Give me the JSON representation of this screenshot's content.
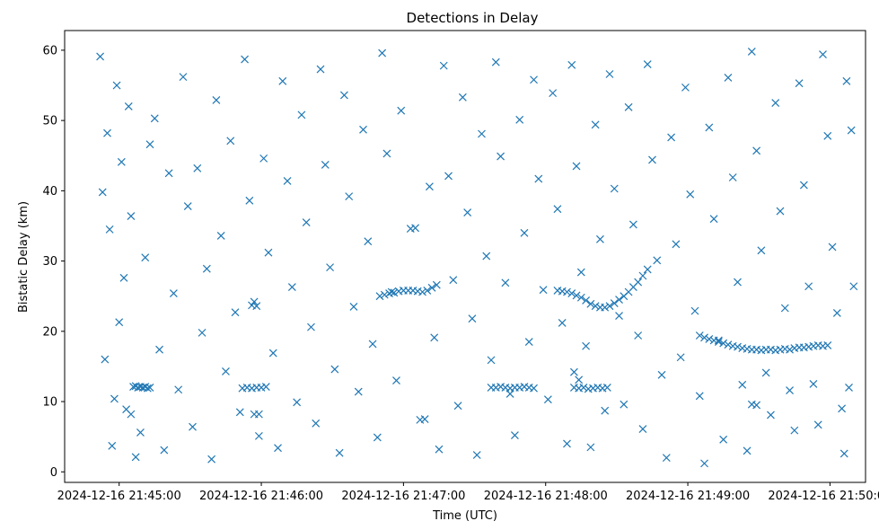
{
  "chart_data": {
    "type": "scatter",
    "title": "Detections in Delay",
    "xlabel": "Time (UTC)",
    "ylabel": "Bistatic Delay (km)",
    "x_ticks": [
      "2024-12-16 21:45:00",
      "2024-12-16 21:46:00",
      "2024-12-16 21:47:00",
      "2024-12-16 21:48:00",
      "2024-12-16 21:49:00",
      "2024-12-16 21:50:00"
    ],
    "y_ticks": [
      0,
      10,
      20,
      30,
      40,
      50,
      60
    ],
    "xlim": [
      "2024-12-16 21:44:37",
      "2024-12-16 21:50:15"
    ],
    "ylim": [
      -1.5,
      62.8
    ],
    "grid": false,
    "marker": "x",
    "color": "#1f77b4",
    "series": [
      {
        "points": [
          [
            "21:44:52",
            59.1
          ],
          [
            "21:44:53",
            39.8
          ],
          [
            "21:44:54",
            16.0
          ],
          [
            "21:44:55",
            48.2
          ],
          [
            "21:44:56",
            34.5
          ],
          [
            "21:44:57",
            3.7
          ],
          [
            "21:44:58",
            10.4
          ],
          [
            "21:44:59",
            55.0
          ],
          [
            "21:45:00",
            21.3
          ],
          [
            "21:45:01",
            44.1
          ],
          [
            "21:45:02",
            27.6
          ],
          [
            "21:45:03",
            8.9
          ],
          [
            "21:45:04",
            52.0
          ],
          [
            "21:45:05",
            36.4
          ],
          [
            "21:45:06",
            12.1
          ],
          [
            "21:45:07",
            12.2
          ],
          [
            "21:45:08",
            12.0
          ],
          [
            "21:45:09",
            12.1
          ],
          [
            "21:45:10",
            12.0
          ],
          [
            "21:45:11",
            12.1
          ],
          [
            "21:45:12",
            11.9
          ],
          [
            "21:45:13",
            12.0
          ],
          [
            "21:45:05",
            8.2
          ],
          [
            "21:45:07",
            2.1
          ],
          [
            "21:45:09",
            5.6
          ],
          [
            "21:45:11",
            30.5
          ],
          [
            "21:45:13",
            46.6
          ],
          [
            "21:45:15",
            50.3
          ],
          [
            "21:45:17",
            17.4
          ],
          [
            "21:45:19",
            3.1
          ],
          [
            "21:45:21",
            42.5
          ],
          [
            "21:45:23",
            25.4
          ],
          [
            "21:45:25",
            11.7
          ],
          [
            "21:45:27",
            56.2
          ],
          [
            "21:45:29",
            37.8
          ],
          [
            "21:45:31",
            6.4
          ],
          [
            "21:45:33",
            43.2
          ],
          [
            "21:45:35",
            19.8
          ],
          [
            "21:45:37",
            28.9
          ],
          [
            "21:45:39",
            1.8
          ],
          [
            "21:45:41",
            52.9
          ],
          [
            "21:45:43",
            33.6
          ],
          [
            "21:45:45",
            14.3
          ],
          [
            "21:45:47",
            47.1
          ],
          [
            "21:45:49",
            22.7
          ],
          [
            "21:45:51",
            8.5
          ],
          [
            "21:45:53",
            58.7
          ],
          [
            "21:45:55",
            38.6
          ],
          [
            "21:45:57",
            24.2
          ],
          [
            "21:45:59",
            5.1
          ],
          [
            "21:45:52",
            11.9
          ],
          [
            "21:45:54",
            12.0
          ],
          [
            "21:45:56",
            11.9
          ],
          [
            "21:45:58",
            12.0
          ],
          [
            "21:46:00",
            12.0
          ],
          [
            "21:46:02",
            12.1
          ],
          [
            "21:45:56",
            23.7
          ],
          [
            "21:45:58",
            23.6
          ],
          [
            "21:45:57",
            8.2
          ],
          [
            "21:45:59",
            8.2
          ],
          [
            "21:46:01",
            44.6
          ],
          [
            "21:46:03",
            31.2
          ],
          [
            "21:46:05",
            16.9
          ],
          [
            "21:46:07",
            3.4
          ],
          [
            "21:46:09",
            55.6
          ],
          [
            "21:46:11",
            41.4
          ],
          [
            "21:46:13",
            26.3
          ],
          [
            "21:46:15",
            9.9
          ],
          [
            "21:46:17",
            50.8
          ],
          [
            "21:46:19",
            35.5
          ],
          [
            "21:46:21",
            20.6
          ],
          [
            "21:46:23",
            6.9
          ],
          [
            "21:46:25",
            57.3
          ],
          [
            "21:46:27",
            43.7
          ],
          [
            "21:46:29",
            29.1
          ],
          [
            "21:46:31",
            14.6
          ],
          [
            "21:46:33",
            2.7
          ],
          [
            "21:46:35",
            53.6
          ],
          [
            "21:46:37",
            39.2
          ],
          [
            "21:46:39",
            23.5
          ],
          [
            "21:46:41",
            11.4
          ],
          [
            "21:46:43",
            48.7
          ],
          [
            "21:46:45",
            32.8
          ],
          [
            "21:46:47",
            18.2
          ],
          [
            "21:46:49",
            4.9
          ],
          [
            "21:46:51",
            59.6
          ],
          [
            "21:46:53",
            45.3
          ],
          [
            "21:46:55",
            25.6
          ],
          [
            "21:46:57",
            13.0
          ],
          [
            "21:46:59",
            51.4
          ],
          [
            "21:46:50",
            25.0
          ],
          [
            "21:46:52",
            25.2
          ],
          [
            "21:46:54",
            25.4
          ],
          [
            "21:46:56",
            25.5
          ],
          [
            "21:46:58",
            25.7
          ],
          [
            "21:47:00",
            25.8
          ],
          [
            "21:47:02",
            25.8
          ],
          [
            "21:47:04",
            25.8
          ],
          [
            "21:47:06",
            25.7
          ],
          [
            "21:47:08",
            25.6
          ],
          [
            "21:47:10",
            25.8
          ],
          [
            "21:47:12",
            26.2
          ],
          [
            "21:47:14",
            26.6
          ],
          [
            "21:47:03",
            34.6
          ],
          [
            "21:47:05",
            34.7
          ],
          [
            "21:47:07",
            7.4
          ],
          [
            "21:47:09",
            7.5
          ],
          [
            "21:47:11",
            40.6
          ],
          [
            "21:47:13",
            19.1
          ],
          [
            "21:47:15",
            3.2
          ],
          [
            "21:47:17",
            57.8
          ],
          [
            "21:47:19",
            42.1
          ],
          [
            "21:47:21",
            27.3
          ],
          [
            "21:47:23",
            9.4
          ],
          [
            "21:47:25",
            53.3
          ],
          [
            "21:47:27",
            36.9
          ],
          [
            "21:47:29",
            21.8
          ],
          [
            "21:47:31",
            2.4
          ],
          [
            "21:47:33",
            48.1
          ],
          [
            "21:47:35",
            30.7
          ],
          [
            "21:47:37",
            15.9
          ],
          [
            "21:47:39",
            58.3
          ],
          [
            "21:47:41",
            44.9
          ],
          [
            "21:47:43",
            26.9
          ],
          [
            "21:47:45",
            11.1
          ],
          [
            "21:47:47",
            5.2
          ],
          [
            "21:47:49",
            50.1
          ],
          [
            "21:47:51",
            34.0
          ],
          [
            "21:47:53",
            18.5
          ],
          [
            "21:47:55",
            55.8
          ],
          [
            "21:47:37",
            12.0
          ],
          [
            "21:47:39",
            12.0
          ],
          [
            "21:47:41",
            12.1
          ],
          [
            "21:47:43",
            12.0
          ],
          [
            "21:47:45",
            11.9
          ],
          [
            "21:47:47",
            12.0
          ],
          [
            "21:47:49",
            12.0
          ],
          [
            "21:47:51",
            12.1
          ],
          [
            "21:47:53",
            12.0
          ],
          [
            "21:47:55",
            11.9
          ],
          [
            "21:47:57",
            41.7
          ],
          [
            "21:47:59",
            25.9
          ],
          [
            "21:48:01",
            10.3
          ],
          [
            "21:48:03",
            53.9
          ],
          [
            "21:48:05",
            37.4
          ],
          [
            "21:48:07",
            21.2
          ],
          [
            "21:48:09",
            4.0
          ],
          [
            "21:48:11",
            57.9
          ],
          [
            "21:48:13",
            43.5
          ],
          [
            "21:48:15",
            28.4
          ],
          [
            "21:48:05",
            25.8
          ],
          [
            "21:48:07",
            25.7
          ],
          [
            "21:48:09",
            25.6
          ],
          [
            "21:48:11",
            25.4
          ],
          [
            "21:48:13",
            25.1
          ],
          [
            "21:48:15",
            24.8
          ],
          [
            "21:48:17",
            24.4
          ],
          [
            "21:48:19",
            23.9
          ],
          [
            "21:48:21",
            23.6
          ],
          [
            "21:48:23",
            23.4
          ],
          [
            "21:48:25",
            23.4
          ],
          [
            "21:48:27",
            23.6
          ],
          [
            "21:48:29",
            24.0
          ],
          [
            "21:48:31",
            24.5
          ],
          [
            "21:48:33",
            25.0
          ],
          [
            "21:48:35",
            25.6
          ],
          [
            "21:48:37",
            26.3
          ],
          [
            "21:48:39",
            27.0
          ],
          [
            "21:48:41",
            27.9
          ],
          [
            "21:48:43",
            28.8
          ],
          [
            "21:48:12",
            12.0
          ],
          [
            "21:48:14",
            11.9
          ],
          [
            "21:48:16",
            12.0
          ],
          [
            "21:48:18",
            11.8
          ],
          [
            "21:48:20",
            11.9
          ],
          [
            "21:48:22",
            12.0
          ],
          [
            "21:48:24",
            11.9
          ],
          [
            "21:48:26",
            12.0
          ],
          [
            "21:48:12",
            14.2
          ],
          [
            "21:48:14",
            13.1
          ],
          [
            "21:48:17",
            17.9
          ],
          [
            "21:48:19",
            3.5
          ],
          [
            "21:48:21",
            49.4
          ],
          [
            "21:48:23",
            33.1
          ],
          [
            "21:48:25",
            8.7
          ],
          [
            "21:48:27",
            56.6
          ],
          [
            "21:48:29",
            40.3
          ],
          [
            "21:48:31",
            22.2
          ],
          [
            "21:48:33",
            9.6
          ],
          [
            "21:48:35",
            51.9
          ],
          [
            "21:48:37",
            35.2
          ],
          [
            "21:48:39",
            19.4
          ],
          [
            "21:48:41",
            6.1
          ],
          [
            "21:48:43",
            58.0
          ],
          [
            "21:48:45",
            44.4
          ],
          [
            "21:48:47",
            30.1
          ],
          [
            "21:48:49",
            13.8
          ],
          [
            "21:48:51",
            2.0
          ],
          [
            "21:48:53",
            47.6
          ],
          [
            "21:48:55",
            32.4
          ],
          [
            "21:48:57",
            16.3
          ],
          [
            "21:48:59",
            54.7
          ],
          [
            "21:49:01",
            39.5
          ],
          [
            "21:49:03",
            22.9
          ],
          [
            "21:49:05",
            10.8
          ],
          [
            "21:49:07",
            1.2
          ],
          [
            "21:49:09",
            49.0
          ],
          [
            "21:49:11",
            36.0
          ],
          [
            "21:49:13",
            18.7
          ],
          [
            "21:49:15",
            4.6
          ],
          [
            "21:49:05",
            19.4
          ],
          [
            "21:49:07",
            19.1
          ],
          [
            "21:49:09",
            18.9
          ],
          [
            "21:49:11",
            18.7
          ],
          [
            "21:49:13",
            18.5
          ],
          [
            "21:49:15",
            18.3
          ],
          [
            "21:49:17",
            18.1
          ],
          [
            "21:49:19",
            17.9
          ],
          [
            "21:49:21",
            17.8
          ],
          [
            "21:49:23",
            17.6
          ],
          [
            "21:49:25",
            17.5
          ],
          [
            "21:49:27",
            17.4
          ],
          [
            "21:49:29",
            17.4
          ],
          [
            "21:49:31",
            17.3
          ],
          [
            "21:49:33",
            17.4
          ],
          [
            "21:49:35",
            17.4
          ],
          [
            "21:49:37",
            17.3
          ],
          [
            "21:49:39",
            17.4
          ],
          [
            "21:49:41",
            17.5
          ],
          [
            "21:49:43",
            17.4
          ],
          [
            "21:49:45",
            17.6
          ],
          [
            "21:49:47",
            17.7
          ],
          [
            "21:49:49",
            17.7
          ],
          [
            "21:49:51",
            17.8
          ],
          [
            "21:49:53",
            17.9
          ],
          [
            "21:49:55",
            18.0
          ],
          [
            "21:49:57",
            17.9
          ],
          [
            "21:49:59",
            18.0
          ],
          [
            "21:49:27",
            9.6
          ],
          [
            "21:49:29",
            9.5
          ],
          [
            "21:49:17",
            56.1
          ],
          [
            "21:49:19",
            41.9
          ],
          [
            "21:49:21",
            27.0
          ],
          [
            "21:49:23",
            12.4
          ],
          [
            "21:49:25",
            3.0
          ],
          [
            "21:49:27",
            59.8
          ],
          [
            "21:49:29",
            45.7
          ],
          [
            "21:49:31",
            31.5
          ],
          [
            "21:49:33",
            14.1
          ],
          [
            "21:49:35",
            8.1
          ],
          [
            "21:49:37",
            52.5
          ],
          [
            "21:49:39",
            37.1
          ],
          [
            "21:49:41",
            23.3
          ],
          [
            "21:49:43",
            11.6
          ],
          [
            "21:49:45",
            5.9
          ],
          [
            "21:49:47",
            55.3
          ],
          [
            "21:49:49",
            40.8
          ],
          [
            "21:49:51",
            26.4
          ],
          [
            "21:49:53",
            12.5
          ],
          [
            "21:49:55",
            6.7
          ],
          [
            "21:49:57",
            59.4
          ],
          [
            "21:49:59",
            47.8
          ],
          [
            "21:50:01",
            32.0
          ],
          [
            "21:50:03",
            22.6
          ],
          [
            "21:50:05",
            9.0
          ],
          [
            "21:50:06",
            2.6
          ],
          [
            "21:50:07",
            55.6
          ],
          [
            "21:50:08",
            12.0
          ],
          [
            "21:50:09",
            48.6
          ],
          [
            "21:50:10",
            26.4
          ]
        ]
      }
    ]
  }
}
